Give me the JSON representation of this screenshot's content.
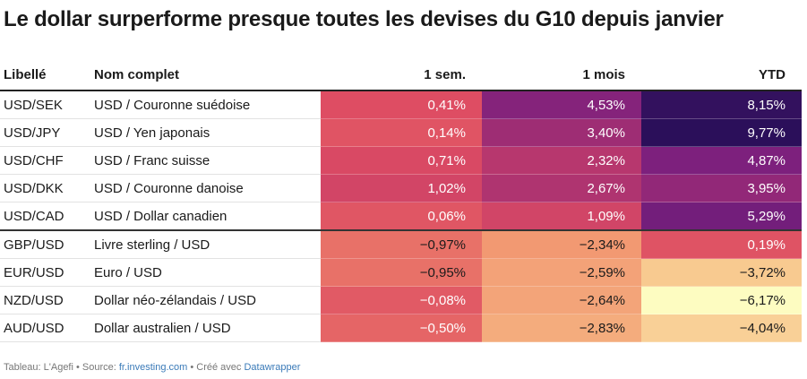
{
  "title": "Le dollar surperforme presque toutes les devises du G10 depuis janvier",
  "footer": {
    "prefix": "Tableau: L'Agefi • Source: ",
    "source": "fr.investing.com",
    "middle": " • Créé avec ",
    "tool": "Datawrapper"
  },
  "chart_data": {
    "type": "table",
    "title": "Le dollar surperforme presque toutes les devises du G10 depuis janvier",
    "columns": [
      "Libellé",
      "Nom complet",
      "1 sem.",
      "1 mois",
      "YTD"
    ],
    "rows": [
      {
        "code": "USD/SEK",
        "name": "USD / Couronne suédoise",
        "w1": "0,41%",
        "m1": "4,53%",
        "ytd": "8,15%",
        "w1_val": 0.41,
        "m1_val": 4.53,
        "ytd_val": 8.15
      },
      {
        "code": "USD/JPY",
        "name": "USD / Yen japonais",
        "w1": "0,14%",
        "m1": "3,40%",
        "ytd": "9,77%",
        "w1_val": 0.14,
        "m1_val": 3.4,
        "ytd_val": 9.77
      },
      {
        "code": "USD/CHF",
        "name": "USD / Franc suisse",
        "w1": "0,71%",
        "m1": "2,32%",
        "ytd": "4,87%",
        "w1_val": 0.71,
        "m1_val": 2.32,
        "ytd_val": 4.87
      },
      {
        "code": "USD/DKK",
        "name": "USD / Couronne danoise",
        "w1": "1,02%",
        "m1": "2,67%",
        "ytd": "3,95%",
        "w1_val": 1.02,
        "m1_val": 2.67,
        "ytd_val": 3.95
      },
      {
        "code": "USD/CAD",
        "name": "USD / Dollar canadien",
        "w1": "0,06%",
        "m1": "1,09%",
        "ytd": "5,29%",
        "w1_val": 0.06,
        "m1_val": 1.09,
        "ytd_val": 5.29
      },
      {
        "code": "GBP/USD",
        "name": "Livre sterling / USD",
        "w1": "−0,97%",
        "m1": "−2,34%",
        "ytd": "0,19%",
        "w1_val": -0.97,
        "m1_val": -2.34,
        "ytd_val": 0.19
      },
      {
        "code": "EUR/USD",
        "name": "Euro / USD",
        "w1": "−0,95%",
        "m1": "−2,59%",
        "ytd": "−3,72%",
        "w1_val": -0.95,
        "m1_val": -2.59,
        "ytd_val": -3.72
      },
      {
        "code": "NZD/USD",
        "name": "Dollar néo-zélandais / USD",
        "w1": "−0,08%",
        "m1": "−2,64%",
        "ytd": "−6,17%",
        "w1_val": -0.08,
        "m1_val": -2.64,
        "ytd_val": -6.17
      },
      {
        "code": "AUD/USD",
        "name": "Dollar australien / USD",
        "w1": "−0,50%",
        "m1": "−2,83%",
        "ytd": "−4,04%",
        "w1_val": -0.5,
        "m1_val": -2.83,
        "ytd_val": -4.04
      }
    ],
    "color_scale": {
      "low": "#fdfdc2",
      "high": "#2b0f5a",
      "stops": [
        "#fdfdc2",
        "#f8c58c",
        "#f08c6b",
        "#dd4b63",
        "#b3356f",
        "#7a1f7e",
        "#2b0f5a"
      ],
      "domain": [
        -6.2,
        -3.5,
        -2.0,
        0.5,
        2.5,
        5.0,
        8.5
      ]
    }
  }
}
